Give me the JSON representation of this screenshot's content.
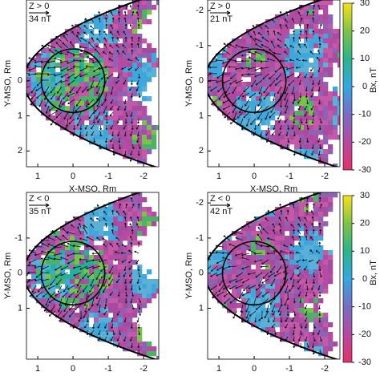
{
  "chart_data": [
    {
      "type": "vector-map",
      "label": "Z > 0",
      "scale_label": "34 nT",
      "xlabel": "X-MSO, Rm",
      "ylabel": "Y-MSO, Rm",
      "xlim": [
        1.32,
        -2.43
      ],
      "ylim": [
        -2.3,
        2.45
      ],
      "xticks": [
        1,
        0,
        -1,
        -2
      ],
      "yticks": [
        0,
        1,
        2
      ]
    },
    {
      "type": "vector-map",
      "label": "Z > 0",
      "scale_label": "21 nT",
      "xlabel": "X-MSO, Rm",
      "ylabel": "Y-MSO, Rm",
      "xlim": [
        1.32,
        -2.43
      ],
      "ylim": [
        -2.3,
        2.45
      ],
      "xticks": [
        1,
        0,
        -1,
        -2
      ],
      "yticks": [
        -2,
        -1,
        0,
        1,
        2
      ],
      "colorbar": {
        "label": "Bx, nT",
        "lim": [
          -30,
          30
        ],
        "ticks": [
          30,
          20,
          10,
          0,
          -10,
          -20,
          -30
        ]
      }
    },
    {
      "type": "vector-map",
      "label": "Z < 0",
      "scale_label": "35 nT",
      "ylabel": "Y-MSO, Rm",
      "xlim": [
        1.32,
        -2.43
      ],
      "ylim": [
        -2.3,
        2.45
      ],
      "xticks": [
        1,
        0,
        -1,
        -2
      ],
      "yticks": [
        -1,
        0,
        1
      ]
    },
    {
      "type": "vector-map",
      "label": "Z < 0",
      "scale_label": "42 nT",
      "ylabel": "Y-MSO, Rm",
      "xlim": [
        1.32,
        -2.43
      ],
      "ylim": [
        -2.3,
        2.45
      ],
      "xticks": [
        1,
        0,
        -1,
        -2
      ],
      "yticks": [
        -2,
        -1,
        0,
        1
      ],
      "colorbar": {
        "label": "Bx, nT",
        "lim": [
          -30,
          30
        ],
        "ticks": [
          30,
          20,
          10,
          0,
          -10,
          -20,
          -30
        ]
      }
    }
  ]
}
